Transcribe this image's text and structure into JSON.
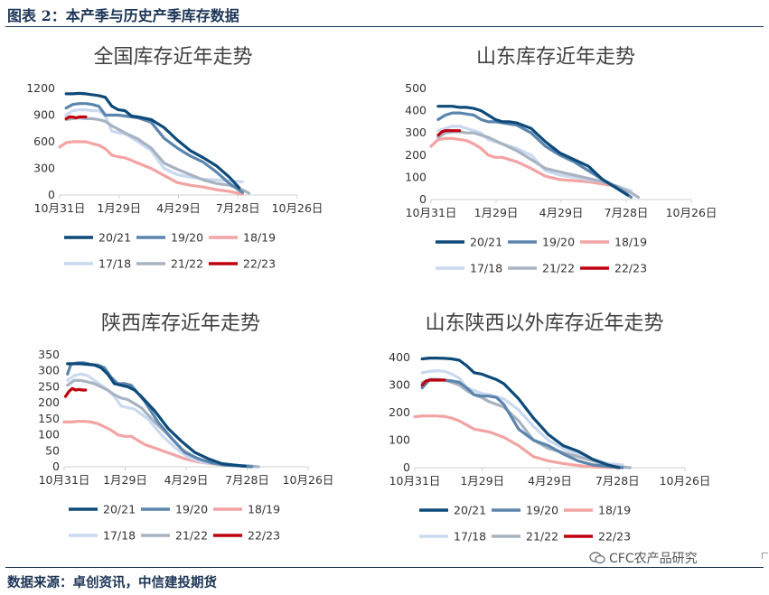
{
  "header": {
    "title": "图表 2：本产季与历史产季库存数据"
  },
  "footer": {
    "source": "数据来源：卓创资讯，中信建投期货",
    "watermark": "CFC农产品研究"
  },
  "colors": {
    "20/21": "#0d4a79",
    "19/20": "#5b85ad",
    "18/19": "#f4a3a3",
    "17/18": "#c9d9f0",
    "21/22": "#a8b3c2",
    "22/23": "#c0000e"
  },
  "legend_order": [
    "20/21",
    "19/20",
    "18/19",
    "17/18",
    "21/22",
    "22/23"
  ],
  "x_ticks": [
    "10月31日",
    "1月29日",
    "4月29日",
    "7月28日",
    "10月26日"
  ],
  "chart_data": [
    {
      "type": "line",
      "title": "全国库存近年走势",
      "x_ticks": [
        "10月31日",
        "1月29日",
        "4月29日",
        "7月28日",
        "10月26日"
      ],
      "y_ticks": [
        "0",
        "300",
        "600",
        "900",
        "1200"
      ],
      "ylim": [
        0,
        1200
      ],
      "x_unit": "days since 10月31日",
      "series": [
        {
          "name": "20/21",
          "x": [
            10,
            20,
            30,
            40,
            50,
            60,
            70,
            80,
            90,
            100,
            110,
            120,
            140,
            160,
            180,
            200,
            220,
            240,
            260,
            275
          ],
          "y": [
            1140,
            1140,
            1145,
            1140,
            1130,
            1120,
            1100,
            1000,
            960,
            950,
            890,
            880,
            850,
            760,
            620,
            500,
            420,
            330,
            200,
            80
          ]
        },
        {
          "name": "19/20",
          "x": [
            10,
            20,
            30,
            40,
            50,
            60,
            70,
            80,
            90,
            100,
            110,
            120,
            140,
            160,
            180,
            200,
            220,
            240,
            260,
            280
          ],
          "y": [
            980,
            1020,
            1030,
            1030,
            1020,
            1000,
            900,
            900,
            900,
            890,
            880,
            870,
            820,
            640,
            530,
            440,
            370,
            260,
            130,
            30
          ]
        },
        {
          "name": "18/19",
          "x": [
            0,
            10,
            20,
            30,
            40,
            50,
            60,
            70,
            80,
            90,
            100,
            120,
            140,
            160,
            180,
            200,
            220,
            240,
            260,
            280
          ],
          "y": [
            540,
            590,
            600,
            600,
            600,
            580,
            560,
            520,
            450,
            430,
            420,
            360,
            300,
            220,
            140,
            110,
            90,
            60,
            40,
            10
          ]
        },
        {
          "name": "17/18",
          "x": [
            10,
            20,
            30,
            40,
            50,
            60,
            70,
            80,
            90,
            100,
            120,
            140,
            160,
            180,
            200,
            220,
            240,
            260,
            280
          ],
          "y": [
            900,
            950,
            960,
            960,
            950,
            950,
            890,
            720,
            700,
            690,
            600,
            500,
            300,
            230,
            200,
            180,
            170,
            160,
            150
          ]
        },
        {
          "name": "21/22",
          "x": [
            10,
            20,
            30,
            40,
            50,
            60,
            70,
            80,
            90,
            100,
            120,
            140,
            160,
            180,
            200,
            220,
            240,
            260,
            280,
            290
          ],
          "y": [
            850,
            860,
            870,
            860,
            860,
            850,
            830,
            780,
            740,
            700,
            630,
            530,
            360,
            290,
            230,
            170,
            130,
            110,
            60,
            20
          ]
        },
        {
          "name": "22/23",
          "x": [
            10,
            15,
            20,
            25,
            30,
            35,
            40
          ],
          "y": [
            860,
            880,
            880,
            870,
            880,
            880,
            880
          ]
        }
      ]
    },
    {
      "type": "line",
      "title": "山东库存近年走势",
      "x_ticks": [
        "10月31日",
        "1月29日",
        "4月29日",
        "7月28日",
        "10月26日"
      ],
      "y_ticks": [
        "0",
        "100",
        "200",
        "300",
        "400",
        "500"
      ],
      "ylim": [
        0,
        500
      ],
      "x_unit": "days since 10月31日",
      "series": [
        {
          "name": "20/21",
          "x": [
            10,
            20,
            30,
            40,
            50,
            60,
            70,
            80,
            90,
            100,
            110,
            120,
            140,
            160,
            180,
            200,
            220,
            240,
            260,
            275
          ],
          "y": [
            420,
            420,
            420,
            415,
            415,
            410,
            400,
            380,
            360,
            350,
            350,
            345,
            320,
            260,
            210,
            180,
            150,
            90,
            50,
            20
          ]
        },
        {
          "name": "19/20",
          "x": [
            10,
            20,
            30,
            40,
            50,
            60,
            70,
            80,
            90,
            100,
            110,
            120,
            140,
            160,
            180,
            200,
            220,
            240,
            260,
            280
          ],
          "y": [
            360,
            380,
            390,
            390,
            385,
            380,
            360,
            350,
            350,
            345,
            340,
            335,
            300,
            240,
            200,
            170,
            130,
            90,
            55,
            10
          ]
        },
        {
          "name": "18/19",
          "x": [
            0,
            10,
            20,
            30,
            40,
            50,
            60,
            70,
            80,
            90,
            100,
            120,
            140,
            160,
            180,
            200,
            220,
            240,
            260,
            280
          ],
          "y": [
            240,
            270,
            275,
            275,
            270,
            265,
            250,
            230,
            200,
            190,
            190,
            170,
            140,
            105,
            90,
            85,
            80,
            70,
            60,
            30
          ]
        },
        {
          "name": "17/18",
          "x": [
            10,
            20,
            30,
            40,
            50,
            60,
            70,
            80,
            90,
            100,
            120,
            140,
            160,
            180,
            200,
            220,
            240,
            260,
            280
          ],
          "y": [
            310,
            320,
            330,
            330,
            320,
            310,
            300,
            270,
            260,
            250,
            230,
            200,
            130,
            110,
            100,
            90,
            80,
            60,
            40
          ]
        },
        {
          "name": "21/22",
          "x": [
            10,
            20,
            30,
            40,
            50,
            60,
            70,
            80,
            90,
            100,
            120,
            140,
            160,
            180,
            200,
            220,
            240,
            260,
            280,
            290
          ],
          "y": [
            280,
            300,
            305,
            305,
            300,
            300,
            290,
            280,
            265,
            250,
            220,
            180,
            140,
            125,
            110,
            95,
            80,
            60,
            30,
            10
          ]
        },
        {
          "name": "22/23",
          "x": [
            10,
            15,
            20,
            25,
            30,
            35,
            40
          ],
          "y": [
            290,
            305,
            310,
            310,
            310,
            310,
            310
          ]
        }
      ]
    },
    {
      "type": "line",
      "title": "陕西库存近年走势",
      "x_ticks": [
        "10月31日",
        "1月29日",
        "4月29日",
        "7月28日",
        "10月26日"
      ],
      "y_ticks": [
        "0",
        "50",
        "100",
        "150",
        "200",
        "250",
        "300",
        "350"
      ],
      "ylim": [
        0,
        350
      ],
      "x_unit": "days since 10月31日",
      "series": [
        {
          "name": "20/21",
          "x": [
            5,
            15,
            25,
            35,
            45,
            55,
            65,
            75,
            85,
            95,
            105,
            115,
            135,
            155,
            175,
            195,
            215,
            235,
            255,
            270
          ],
          "y": [
            322,
            322,
            322,
            320,
            318,
            310,
            290,
            260,
            255,
            250,
            240,
            220,
            175,
            120,
            80,
            45,
            25,
            10,
            5,
            2
          ]
        },
        {
          "name": "19/20",
          "x": [
            5,
            10,
            20,
            30,
            40,
            50,
            60,
            70,
            80,
            90,
            100,
            110,
            120,
            140,
            160,
            180,
            200,
            220,
            240,
            260,
            280
          ],
          "y": [
            290,
            320,
            325,
            325,
            320,
            318,
            310,
            280,
            260,
            260,
            255,
            230,
            205,
            140,
            90,
            45,
            25,
            12,
            5,
            3,
            0
          ]
        },
        {
          "name": "18/19",
          "x": [
            0,
            10,
            20,
            30,
            40,
            50,
            60,
            70,
            80,
            90,
            100,
            120,
            140,
            160,
            180,
            200,
            220,
            240,
            260,
            280
          ],
          "y": [
            140,
            140,
            142,
            142,
            140,
            135,
            125,
            115,
            100,
            95,
            95,
            70,
            55,
            40,
            25,
            15,
            10,
            5,
            3,
            1
          ]
        },
        {
          "name": "17/18",
          "x": [
            5,
            15,
            25,
            35,
            45,
            55,
            65,
            75,
            85,
            95,
            105,
            125,
            145,
            165,
            185,
            205,
            225,
            245,
            265,
            280
          ],
          "y": [
            270,
            285,
            290,
            285,
            270,
            255,
            240,
            220,
            190,
            185,
            180,
            150,
            100,
            60,
            30,
            15,
            10,
            5,
            3,
            0
          ]
        },
        {
          "name": "21/22",
          "x": [
            5,
            15,
            25,
            35,
            45,
            55,
            65,
            75,
            85,
            95,
            115,
            135,
            155,
            175,
            195,
            215,
            235,
            255,
            275,
            290
          ],
          "y": [
            255,
            270,
            270,
            265,
            260,
            250,
            240,
            225,
            215,
            210,
            185,
            140,
            100,
            55,
            30,
            15,
            8,
            5,
            3,
            0
          ]
        },
        {
          "name": "22/23",
          "x": [
            2,
            7,
            12,
            17,
            22,
            27,
            32
          ],
          "y": [
            220,
            235,
            245,
            240,
            242,
            240,
            240
          ]
        }
      ]
    },
    {
      "type": "line",
      "title": "山东陕西以外库存近年走势",
      "x_ticks": [
        "10月31日",
        "1月29日",
        "4月29日",
        "7月28日",
        "10月26日"
      ],
      "y_ticks": [
        "0",
        "100",
        "200",
        "300",
        "400"
      ],
      "ylim": [
        0,
        400
      ],
      "x_unit": "days since 10月31日",
      "series": [
        {
          "name": "20/21",
          "x": [
            10,
            20,
            30,
            40,
            50,
            60,
            70,
            80,
            90,
            100,
            110,
            120,
            140,
            160,
            180,
            200,
            220,
            240,
            260,
            275
          ],
          "y": [
            395,
            398,
            398,
            397,
            395,
            390,
            370,
            345,
            340,
            330,
            320,
            305,
            250,
            180,
            120,
            80,
            60,
            30,
            10,
            0
          ]
        },
        {
          "name": "19/20",
          "x": [
            10,
            20,
            30,
            40,
            50,
            60,
            70,
            80,
            90,
            100,
            110,
            120,
            140,
            160,
            180,
            200,
            220,
            240,
            260,
            280
          ],
          "y": [
            290,
            320,
            320,
            318,
            315,
            310,
            290,
            265,
            260,
            260,
            255,
            230,
            140,
            100,
            80,
            50,
            25,
            10,
            5,
            0
          ]
        },
        {
          "name": "18/19",
          "x": [
            0,
            10,
            20,
            30,
            40,
            50,
            60,
            70,
            80,
            90,
            100,
            120,
            140,
            160,
            180,
            200,
            220,
            240,
            260,
            280
          ],
          "y": [
            185,
            188,
            188,
            188,
            186,
            180,
            170,
            155,
            140,
            135,
            130,
            110,
            80,
            40,
            25,
            15,
            8,
            3,
            1,
            0
          ]
        },
        {
          "name": "17/18",
          "x": [
            10,
            20,
            30,
            40,
            50,
            60,
            70,
            80,
            90,
            100,
            120,
            140,
            160,
            180,
            200,
            220,
            240,
            260,
            280
          ],
          "y": [
            345,
            350,
            352,
            350,
            340,
            325,
            290,
            280,
            270,
            265,
            250,
            210,
            150,
            100,
            70,
            50,
            30,
            15,
            10
          ]
        },
        {
          "name": "21/22",
          "x": [
            10,
            20,
            30,
            40,
            50,
            60,
            70,
            80,
            90,
            100,
            120,
            140,
            160,
            180,
            200,
            220,
            240,
            260,
            280,
            290
          ],
          "y": [
            310,
            318,
            320,
            318,
            310,
            300,
            280,
            265,
            255,
            240,
            220,
            170,
            100,
            70,
            55,
            40,
            25,
            10,
            3,
            0
          ]
        },
        {
          "name": "22/23",
          "x": [
            10,
            15,
            20,
            25,
            30,
            35,
            40
          ],
          "y": [
            300,
            315,
            318,
            318,
            318,
            318,
            318
          ]
        }
      ]
    }
  ]
}
